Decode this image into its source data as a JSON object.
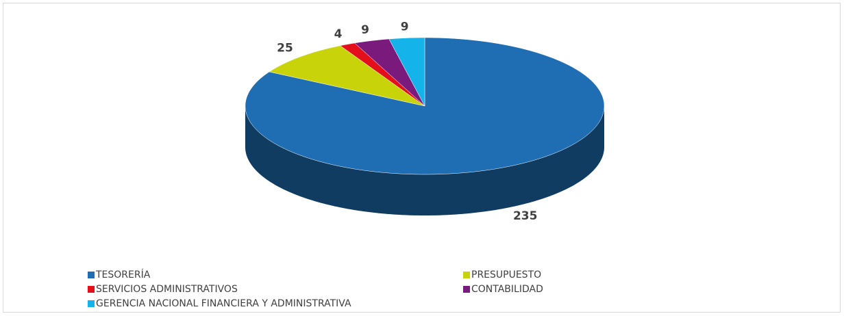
{
  "chart_data": {
    "type": "pie3d",
    "categories": [
      "TESORERÍA",
      "PRESUPUESTO",
      "SERVICIOS ADMINISTRATIVOS",
      "CONTABILIDAD",
      "GERENCIA NACIONAL FINANCIERA Y ADMINISTRATIVA"
    ],
    "values": [
      235,
      25,
      4,
      9,
      9
    ],
    "colors": [
      "#1f6db3",
      "#c9d30a",
      "#e3101c",
      "#7a1a7c",
      "#14b4ea"
    ],
    "legend": "bottom"
  }
}
